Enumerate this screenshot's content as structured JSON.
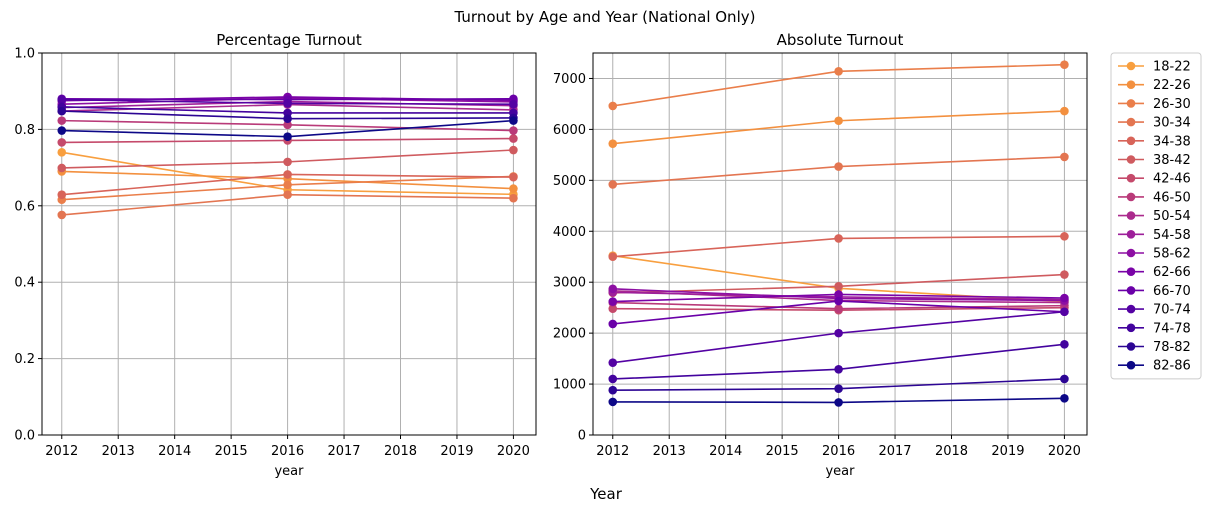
{
  "figure": {
    "suptitle": "Turnout by Age and Year (National Only)",
    "supxlabel": "Year"
  },
  "legend": {
    "placement": "outside-right"
  },
  "chart_data": [
    {
      "type": "line",
      "title": "Percentage Turnout",
      "xlabel": "year",
      "ylabel": "",
      "x": [
        2012,
        2016,
        2020
      ],
      "xlim": [
        2011.65,
        2020.4
      ],
      "ylim": [
        0,
        1
      ],
      "xticks": [
        "2012",
        "2013",
        "2014",
        "2015",
        "2016",
        "2017",
        "2018",
        "2019",
        "2020"
      ],
      "yticks": [
        "0.0",
        "0.2",
        "0.4",
        "0.6",
        "0.8",
        "1.0"
      ],
      "grid": true,
      "series": [
        {
          "name": "18-22",
          "color": "#f89f3f",
          "values": [
            0.74,
            0.642,
            0.63
          ]
        },
        {
          "name": "22-26",
          "color": "#f3903f",
          "values": [
            0.69,
            0.671,
            0.645
          ]
        },
        {
          "name": "26-30",
          "color": "#ea7e4a",
          "values": [
            0.616,
            0.655,
            0.677
          ]
        },
        {
          "name": "30-34",
          "color": "#e37551",
          "values": [
            0.576,
            0.629,
            0.62
          ]
        },
        {
          "name": "34-38",
          "color": "#d86459",
          "values": [
            0.629,
            0.682,
            0.675
          ]
        },
        {
          "name": "38-42",
          "color": "#cf5b5f",
          "values": [
            0.699,
            0.715,
            0.746
          ]
        },
        {
          "name": "42-46",
          "color": "#c54a6b",
          "values": [
            0.766,
            0.771,
            0.776
          ]
        },
        {
          "name": "46-50",
          "color": "#b93a79",
          "values": [
            0.823,
            0.812,
            0.797
          ]
        },
        {
          "name": "50-54",
          "color": "#ab2a8d",
          "values": [
            0.848,
            0.865,
            0.851
          ]
        },
        {
          "name": "54-58",
          "color": "#9d1f9a",
          "values": [
            0.857,
            0.873,
            0.862
          ]
        },
        {
          "name": "58-62",
          "color": "#8d0fa3",
          "values": [
            0.866,
            0.882,
            0.872
          ]
        },
        {
          "name": "62-66",
          "color": "#7a03a7",
          "values": [
            0.875,
            0.885,
            0.876
          ]
        },
        {
          "name": "66-70",
          "color": "#6a00a8",
          "values": [
            0.88,
            0.878,
            0.88
          ]
        },
        {
          "name": "70-74",
          "color": "#5402a3",
          "values": [
            0.878,
            0.868,
            0.866
          ]
        },
        {
          "name": "74-78",
          "color": "#43039e",
          "values": [
            0.859,
            0.843,
            0.843
          ]
        },
        {
          "name": "78-82",
          "color": "#2c0594",
          "values": [
            0.848,
            0.828,
            0.83
          ]
        },
        {
          "name": "82-86",
          "color": "#0d0887",
          "values": [
            0.797,
            0.781,
            0.823
          ]
        }
      ]
    },
    {
      "type": "line",
      "title": "Absolute Turnout",
      "xlabel": "year",
      "ylabel": "",
      "x": [
        2012,
        2016,
        2020
      ],
      "xlim": [
        2011.65,
        2020.4
      ],
      "ylim": [
        0,
        7500
      ],
      "xticks": [
        "2012",
        "2013",
        "2014",
        "2015",
        "2016",
        "2017",
        "2018",
        "2019",
        "2020"
      ],
      "yticks": [
        "0",
        "1000",
        "2000",
        "3000",
        "4000",
        "5000",
        "6000",
        "7000"
      ],
      "grid": true,
      "series": [
        {
          "name": "18-22",
          "color": "#f89f3f",
          "values": [
            3520,
            2880,
            2620
          ]
        },
        {
          "name": "22-26",
          "color": "#f3903f",
          "values": [
            5720,
            6170,
            6360
          ]
        },
        {
          "name": "26-30",
          "color": "#ea7e4a",
          "values": [
            6460,
            7140,
            7270
          ]
        },
        {
          "name": "30-34",
          "color": "#e37551",
          "values": [
            4920,
            5270,
            5460
          ]
        },
        {
          "name": "34-38",
          "color": "#d86459",
          "values": [
            3500,
            3860,
            3900
          ]
        },
        {
          "name": "38-42",
          "color": "#cf5b5f",
          "values": [
            2790,
            2920,
            3150
          ]
        },
        {
          "name": "42-46",
          "color": "#c54a6b",
          "values": [
            2480,
            2450,
            2500
          ]
        },
        {
          "name": "46-50",
          "color": "#b93a79",
          "values": [
            2600,
            2480,
            2540
          ]
        },
        {
          "name": "50-54",
          "color": "#ab2a8d",
          "values": [
            2830,
            2640,
            2600
          ]
        },
        {
          "name": "54-58",
          "color": "#9d1f9a",
          "values": [
            2800,
            2710,
            2660
          ]
        },
        {
          "name": "58-62",
          "color": "#8d0fa3",
          "values": [
            2870,
            2680,
            2640
          ]
        },
        {
          "name": "62-66",
          "color": "#7a03a7",
          "values": [
            2620,
            2760,
            2690
          ]
        },
        {
          "name": "66-70",
          "color": "#6a00a8",
          "values": [
            2180,
            2630,
            2420
          ]
        },
        {
          "name": "70-74",
          "color": "#5402a3",
          "values": [
            1420,
            2000,
            2420
          ]
        },
        {
          "name": "74-78",
          "color": "#43039e",
          "values": [
            1100,
            1290,
            1780
          ]
        },
        {
          "name": "78-82",
          "color": "#2c0594",
          "values": [
            880,
            910,
            1100
          ]
        },
        {
          "name": "82-86",
          "color": "#0d0887",
          "values": [
            650,
            640,
            720
          ]
        }
      ]
    }
  ]
}
